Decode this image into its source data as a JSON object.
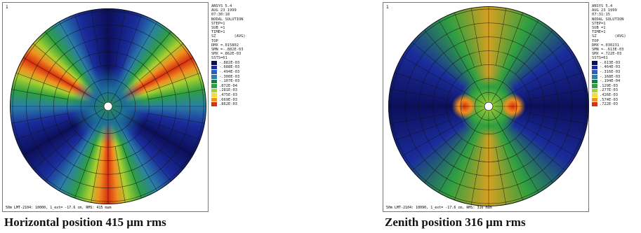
{
  "panels": [
    {
      "corner_label": "1",
      "info": [
        "ANSYS 5.4",
        "AUG 23 1999",
        "07:30:18",
        "NODAL SOLUTION",
        "STEP=1",
        "SUB =1",
        "TIME=1",
        "SZ        (AVG)",
        "TOP",
        "DMX =.015802",
        "SMN =-.882E-03",
        "SMX =.862E-03",
        "SSTS=61"
      ],
      "legend": [
        "-.882E-03",
        "-.688E-03",
        "-.494E-03",
        "-.300E-03",
        "-.107E-03",
        ".872E-04",
        ".281E-03",
        ".475E-03",
        ".669E-03",
        ".862E-03"
      ],
      "footer": "50m LMT-2104: 10000, 1_ext= -17.6 cm, RMS: 415 mum",
      "caption": "Horizontal position  415 µm rms"
    },
    {
      "corner_label": "1",
      "info": [
        "ANSYS 5.4",
        "AUG 23 1999",
        "07:31:15",
        "NODAL SOLUTION",
        "STEP=1",
        "SUB =1",
        "TIME=1",
        "SZ        (AVG)",
        "TOP",
        "DMX =.030231",
        "SMN =-.613E-03",
        "SMX =.722E-03",
        "SSTS=61"
      ],
      "legend": [
        "-.613E-03",
        "-.464E-03",
        "-.316E-03",
        "-.168E-03",
        "-.194E-04",
        ".129E-03",
        ".277E-03",
        ".426E-03",
        ".574E-03",
        ".722E-03"
      ],
      "footer": "50m LMT-2104: 10090, 1_ext= -17.6 cm, RMS: 316 mum",
      "caption": "Zenith position 316 µm rms"
    }
  ]
}
